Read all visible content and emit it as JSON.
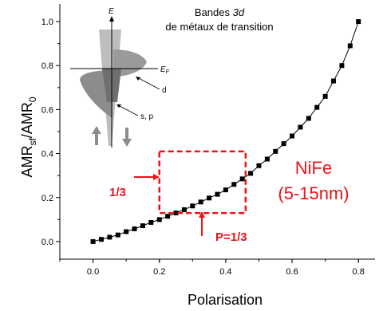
{
  "chart_data": {
    "type": "scatter",
    "xlabel": "Polarisation",
    "ylabel": {
      "main": "AMR",
      "sub1": "sf",
      "sep": "/AMR",
      "sub2": "0"
    },
    "xlim": [
      -0.1,
      0.85
    ],
    "ylim": [
      -0.08,
      1.08
    ],
    "xticks": [
      "0.0",
      "0.2",
      "0.4",
      "0.6",
      "0.8"
    ],
    "yticks": [
      "0.0",
      "0.2",
      "0.4",
      "0.6",
      "0.8",
      "1.0"
    ],
    "series": [
      {
        "x": [
          0.0,
          0.025,
          0.05,
          0.075,
          0.1,
          0.125,
          0.15,
          0.175,
          0.2,
          0.225,
          0.25,
          0.275,
          0.3,
          0.325,
          0.35,
          0.375,
          0.4,
          0.425,
          0.45,
          0.475,
          0.5,
          0.525,
          0.55,
          0.575,
          0.6,
          0.625,
          0.65,
          0.675,
          0.7,
          0.725,
          0.75,
          0.775,
          0.8
        ],
        "y": [
          0.0,
          0.01,
          0.02,
          0.03,
          0.045,
          0.058,
          0.072,
          0.087,
          0.1,
          0.115,
          0.13,
          0.145,
          0.162,
          0.18,
          0.198,
          0.215,
          0.235,
          0.26,
          0.285,
          0.31,
          0.345,
          0.375,
          0.41,
          0.445,
          0.48,
          0.52,
          0.56,
          0.61,
          0.66,
          0.73,
          0.8,
          0.89,
          1.0
        ],
        "color": "#000000",
        "marker": "square",
        "connected": true
      }
    ],
    "grid": false,
    "highlight_box": {
      "x": [
        0.2,
        0.46
      ],
      "y": [
        0.13,
        0.41
      ],
      "color": "#e8141a"
    }
  },
  "inset": {
    "title_line1": "Bandes ",
    "title_italic": "3d",
    "title_line2": "de métaux de transition",
    "axis_label": "E",
    "fermi_label": "E",
    "fermi_sub": "F",
    "d_label": "d",
    "sp_label": "s, p",
    "band_color": "#8c8c8c"
  },
  "annotations": {
    "material": "NiFe",
    "thickness": "(5-15nm)",
    "left_label": "1/3",
    "bottom_label": "P=1/3",
    "accent_color": "#e8141a"
  }
}
